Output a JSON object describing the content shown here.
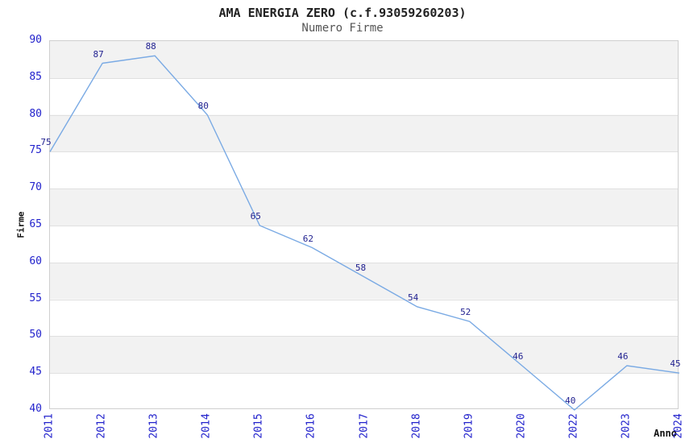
{
  "header": {
    "title": "AMA ENERGIA ZERO (c.f.93059260203)",
    "subtitle": "Numero Firme"
  },
  "chart_data": {
    "type": "line",
    "title": "AMA ENERGIA ZERO (c.f.93059260203)",
    "subtitle": "Numero Firme",
    "xlabel": "Anno",
    "ylabel": "Firme",
    "categories": [
      "2011",
      "2012",
      "2013",
      "2014",
      "2015",
      "2016",
      "2017",
      "2018",
      "2019",
      "2020",
      "2022",
      "2023",
      "2024"
    ],
    "values": [
      75,
      87,
      88,
      80,
      65,
      62,
      58,
      54,
      52,
      46,
      40,
      46,
      45
    ],
    "ylim": [
      40,
      90
    ],
    "ytick_step": 5,
    "yticks": [
      40,
      45,
      50,
      55,
      60,
      65,
      70,
      75,
      80,
      85,
      90
    ],
    "grid": true,
    "legend": "none",
    "band_fill": true,
    "colors": {
      "line": "#7aaae4",
      "tick_label": "#2222cc",
      "data_label": "#1f1f8f",
      "band": "#f2f2f2",
      "gridline": "#e0e0e0",
      "plot_border": "#cfcfcf",
      "title": "#222222",
      "subtitle": "#555555",
      "axis_title": "#111111"
    }
  }
}
